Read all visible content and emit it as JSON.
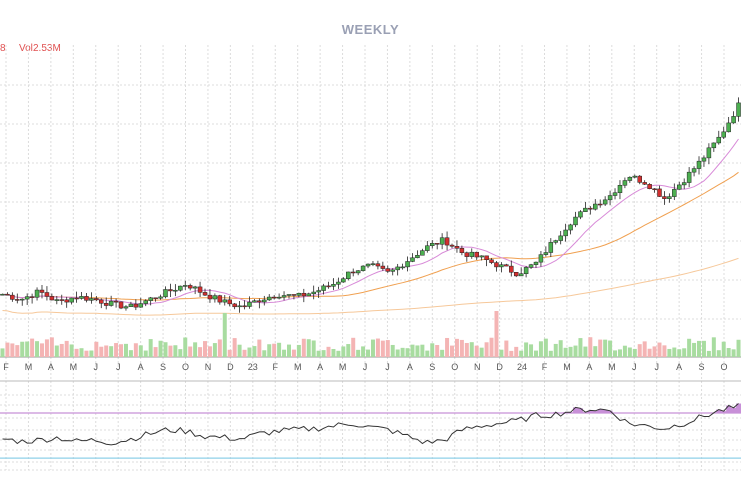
{
  "chart_data": {
    "type": "candlestick",
    "title": "WEEKLY",
    "volume_label_prefix": "Vol",
    "volume_value": "2.53M",
    "left_clipped_text": "8",
    "x_tick_labels": [
      "F",
      "M",
      "A",
      "M",
      "J",
      "J",
      "A",
      "S",
      "O",
      "N",
      "D",
      "23",
      "F",
      "M",
      "A",
      "M",
      "J",
      "J",
      "A",
      "S",
      "O",
      "N",
      "D",
      "24",
      "F",
      "M",
      "A",
      "M",
      "J",
      "J",
      "A",
      "S",
      "O"
    ],
    "colors": {
      "up": "#4caf50",
      "down": "#d32f2f",
      "vol_up": "#a8dca0",
      "vol_down": "#f4b4b4",
      "ma_short": "#d88ad8",
      "ma_mid": "#f0a050",
      "ma_long": "#f6c89a",
      "indicator_line": "#333333",
      "indicator_fill": "#c890d8",
      "upper_band": "#c890d8",
      "lower_band": "#8fd0e8",
      "grid": "#dcdcdc"
    },
    "price_trend": [
      3.5,
      3.3,
      3.6,
      3.2,
      3.4,
      3.3,
      3.1,
      3.0,
      3.3,
      3.6,
      3.9,
      3.5,
      3.2,
      3.0,
      3.3,
      3.5,
      3.4,
      3.6,
      3.9,
      4.4,
      4.6,
      4.3,
      4.8,
      5.3,
      5.6,
      5.1,
      4.9,
      4.6,
      4.3,
      4.7,
      5.6,
      6.4,
      6.9,
      7.3,
      8.1,
      7.8,
      7.2,
      7.9,
      8.7,
      9.6,
      10.8
    ],
    "indicator_trend": [
      48,
      46,
      47,
      49,
      46,
      47,
      45,
      48,
      52,
      55,
      54,
      50,
      49,
      48,
      52,
      54,
      55,
      56,
      58,
      60,
      57,
      55,
      50,
      45,
      47,
      55,
      58,
      60,
      62,
      66,
      67,
      70,
      71,
      70,
      60,
      58,
      56,
      60,
      65,
      70,
      73
    ]
  }
}
